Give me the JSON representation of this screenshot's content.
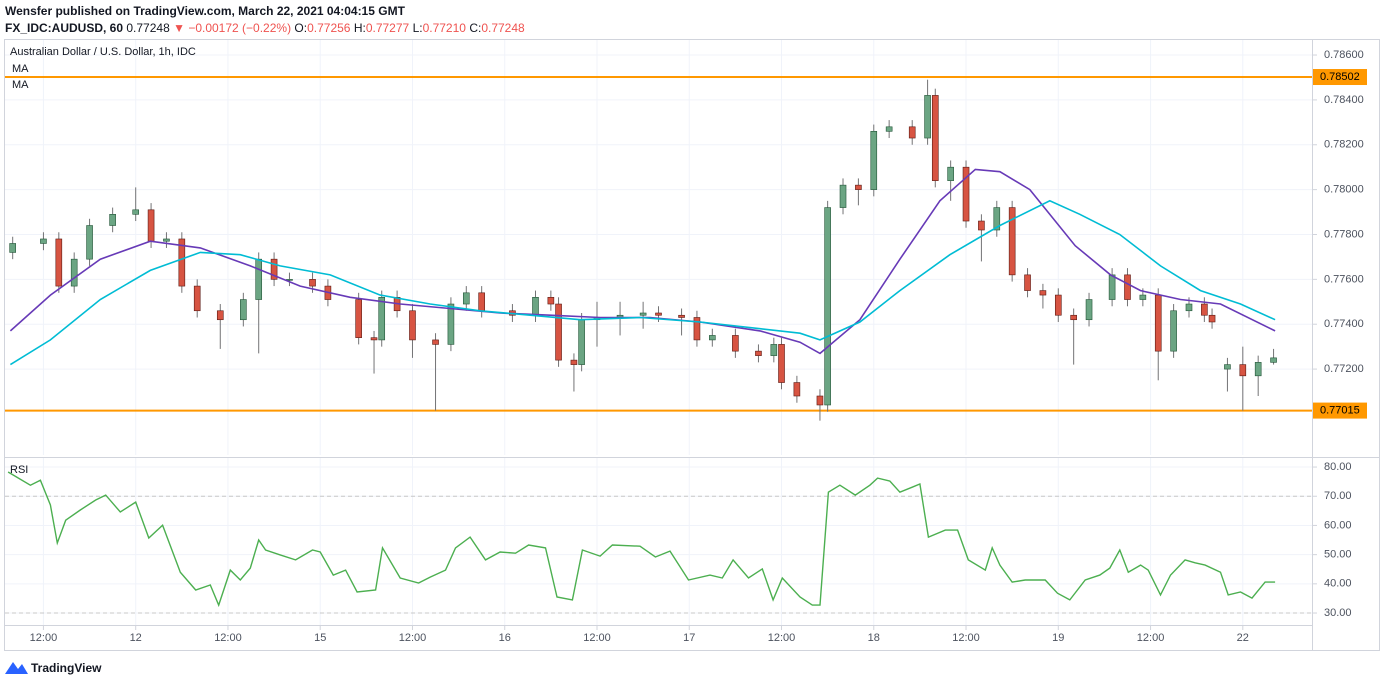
{
  "header": {
    "line1": "Wensfer published on TradingView.com, March 22, 2021 04:04:15 GMT",
    "symbol": "FX_IDC:AUDUSD, 60",
    "last": "0.77248",
    "change": "▼ −0.00172 (−0.22%)",
    "ohlc": [
      {
        "key": "O:",
        "value": "0.77256"
      },
      {
        "key": "H:",
        "value": "0.77277"
      },
      {
        "key": "L:",
        "value": "0.77210"
      },
      {
        "key": "C:",
        "value": "0.77248"
      }
    ]
  },
  "footer": {
    "logo": "TradingView"
  },
  "chart_data": [
    {
      "type": "candlestick",
      "title": "Australian Dollar / U.S. Dollar, 1h, IDC",
      "up_color": "#6ba583",
      "down_color": "#d75442",
      "wick_color": "#737375",
      "grid": true,
      "xlim": [
        -5,
        165
      ],
      "ylim": [
        0.76817,
        0.78667
      ],
      "yticks": [
        {
          "value": 0.772,
          "label": "0.77200"
        },
        {
          "value": 0.774,
          "label": "0.77400"
        },
        {
          "value": 0.776,
          "label": "0.77600"
        },
        {
          "value": 0.778,
          "label": "0.77800"
        },
        {
          "value": 0.78,
          "label": "0.78000"
        },
        {
          "value": 0.782,
          "label": "0.78200"
        },
        {
          "value": 0.784,
          "label": "0.78400"
        },
        {
          "value": 0.786,
          "label": "0.78600"
        }
      ],
      "hline_color": "#ff9800",
      "hlines": [
        {
          "value": 0.78502,
          "label": "0.78502"
        },
        {
          "value": 0.77015,
          "label": "0.77015"
        }
      ],
      "x": [
        -4,
        0,
        2,
        4,
        6,
        9,
        12,
        14,
        16,
        18,
        20,
        23,
        26,
        28,
        30,
        32,
        35,
        37,
        41,
        43,
        44,
        46,
        48,
        51,
        53,
        55,
        57,
        61,
        64,
        66,
        67,
        69,
        70,
        72,
        75,
        78,
        80,
        83,
        85,
        87,
        90,
        93,
        95,
        96,
        98,
        101,
        102,
        104,
        106,
        108,
        110,
        113,
        115,
        116,
        118,
        120,
        122,
        124,
        126,
        128,
        130,
        132,
        134,
        136,
        139,
        141,
        143,
        145,
        147,
        149,
        151,
        152,
        154,
        156,
        158,
        160
      ],
      "open": [
        0.7772,
        0.7776,
        0.7778,
        0.7757,
        0.7769,
        0.7784,
        0.7789,
        0.7791,
        0.7777,
        0.7778,
        0.7757,
        0.7746,
        0.7742,
        0.7751,
        0.7769,
        0.776,
        0.776,
        0.7757,
        0.7751,
        0.7734,
        0.7733,
        0.7752,
        0.7746,
        0.7733,
        0.7731,
        0.7749,
        0.7754,
        0.7746,
        0.7744,
        0.7752,
        0.7749,
        0.7724,
        0.7722,
        0.7742,
        0.7743,
        0.7744,
        0.7745,
        0.7744,
        0.7743,
        0.7733,
        0.7735,
        0.7728,
        0.7726,
        0.7731,
        0.7714,
        0.7708,
        0.7704,
        0.7792,
        0.7802,
        0.78,
        0.7826,
        0.7828,
        0.7823,
        0.7842,
        0.7804,
        0.781,
        0.7786,
        0.7782,
        0.7792,
        0.7762,
        0.7755,
        0.7753,
        0.7744,
        0.7742,
        0.7751,
        0.7762,
        0.7751,
        0.7753,
        0.7728,
        0.7746,
        0.7749,
        0.7744,
        0.772,
        0.7722,
        0.7717,
        0.7723
      ],
      "high": [
        0.7779,
        0.7781,
        0.7781,
        0.7772,
        0.7787,
        0.7792,
        0.7801,
        0.7794,
        0.7781,
        0.7781,
        0.776,
        0.7749,
        0.7754,
        0.7772,
        0.7772,
        0.7763,
        0.7763,
        0.776,
        0.7754,
        0.7737,
        0.7755,
        0.7755,
        0.7749,
        0.7736,
        0.7752,
        0.7757,
        0.7757,
        0.7749,
        0.7755,
        0.7755,
        0.7752,
        0.7727,
        0.7745,
        0.775,
        0.775,
        0.775,
        0.7748,
        0.7747,
        0.7746,
        0.7738,
        0.7738,
        0.7731,
        0.7734,
        0.7734,
        0.7717,
        0.7711,
        0.7795,
        0.7805,
        0.7805,
        0.7829,
        0.7831,
        0.7831,
        0.7849,
        0.7845,
        0.7813,
        0.7813,
        0.7789,
        0.7795,
        0.7795,
        0.7765,
        0.7758,
        0.7756,
        0.7747,
        0.7754,
        0.7765,
        0.7765,
        0.7756,
        0.7756,
        0.7749,
        0.7752,
        0.7752,
        0.7747,
        0.7725,
        0.773,
        0.7726,
        0.7729
      ],
      "low": [
        0.7769,
        0.7773,
        0.7754,
        0.7754,
        0.7766,
        0.7781,
        0.7786,
        0.7774,
        0.7774,
        0.7754,
        0.7743,
        0.7729,
        0.7739,
        0.7727,
        0.7757,
        0.7757,
        0.7754,
        0.7748,
        0.7731,
        0.7718,
        0.773,
        0.7743,
        0.7725,
        0.77015,
        0.7728,
        0.7746,
        0.7743,
        0.7741,
        0.7741,
        0.7746,
        0.7721,
        0.771,
        0.7719,
        0.773,
        0.7735,
        0.7738,
        0.7741,
        0.7735,
        0.773,
        0.773,
        0.7725,
        0.7723,
        0.7723,
        0.7711,
        0.7705,
        0.7697,
        0.7701,
        0.7789,
        0.7793,
        0.7797,
        0.7823,
        0.782,
        0.782,
        0.7801,
        0.7795,
        0.7783,
        0.7768,
        0.7779,
        0.7759,
        0.7752,
        0.7747,
        0.7741,
        0.7722,
        0.7739,
        0.7748,
        0.7748,
        0.7748,
        0.7715,
        0.7725,
        0.7743,
        0.7741,
        0.7738,
        0.771,
        0.77015,
        0.7708,
        0.7722
      ],
      "close": [
        0.7776,
        0.7778,
        0.7757,
        0.7769,
        0.7784,
        0.7789,
        0.7791,
        0.7777,
        0.7778,
        0.7757,
        0.7746,
        0.7742,
        0.7751,
        0.7769,
        0.776,
        0.776,
        0.7757,
        0.7751,
        0.7734,
        0.7733,
        0.7752,
        0.7746,
        0.7733,
        0.7731,
        0.7749,
        0.7754,
        0.7746,
        0.7744,
        0.7752,
        0.7749,
        0.7724,
        0.7722,
        0.7742,
        0.7743,
        0.7744,
        0.7745,
        0.7744,
        0.7743,
        0.7733,
        0.7735,
        0.7728,
        0.7726,
        0.7731,
        0.7714,
        0.7708,
        0.7704,
        0.7792,
        0.7802,
        0.78,
        0.7826,
        0.7828,
        0.7823,
        0.7842,
        0.7804,
        0.781,
        0.7786,
        0.7782,
        0.7792,
        0.7762,
        0.7755,
        0.7753,
        0.7744,
        0.7742,
        0.7751,
        0.7762,
        0.7751,
        0.7753,
        0.7728,
        0.7746,
        0.7749,
        0.7744,
        0.7741,
        0.7722,
        0.7717,
        0.7723,
        0.7725
      ],
      "series": [
        {
          "name": "MA",
          "color": "#673ab7",
          "x": [
            -4.3,
            0.9,
            7.4,
            13.9,
            20.4,
            26.9,
            33.4,
            39.9,
            46.4,
            52.9,
            59.4,
            65.9,
            72.4,
            78.9,
            85.4,
            93.2,
            98.4,
            101,
            106.2,
            111.4,
            116.6,
            121.2,
            124.4,
            128.3,
            134.2,
            138.8,
            142.7,
            147.9,
            153.1,
            160.2
          ],
          "values": [
            0.7737,
            0.7753,
            0.7769,
            0.7777,
            0.7774,
            0.7766,
            0.7757,
            0.7752,
            0.7749,
            0.7747,
            0.7745,
            0.7744,
            0.7743,
            0.7743,
            0.7741,
            0.7737,
            0.7732,
            0.7727,
            0.7742,
            0.7769,
            0.7795,
            0.7809,
            0.7808,
            0.78,
            0.7775,
            0.7762,
            0.7755,
            0.7751,
            0.7749,
            0.7737
          ]
        },
        {
          "name": "MA",
          "color": "#00bcd4",
          "x": [
            -4.3,
            0.9,
            7.4,
            13.9,
            20.4,
            25.6,
            30.8,
            37.3,
            43.8,
            50.3,
            56.8,
            63.3,
            69.8,
            77.6,
            85.4,
            93.2,
            98.4,
            101,
            106.2,
            111.4,
            117.9,
            124.4,
            130.9,
            134.8,
            140,
            145.3,
            150.5,
            155.7,
            160.2
          ],
          "values": [
            0.7722,
            0.7733,
            0.7751,
            0.7764,
            0.7772,
            0.7771,
            0.7766,
            0.7762,
            0.7753,
            0.7749,
            0.7746,
            0.7744,
            0.7742,
            0.7743,
            0.7741,
            0.7738,
            0.7736,
            0.7733,
            0.7741,
            0.7755,
            0.7771,
            0.7784,
            0.7795,
            0.7789,
            0.778,
            0.7766,
            0.7755,
            0.7749,
            0.7742
          ]
        }
      ]
    },
    {
      "type": "line",
      "title": "RSI",
      "grid": true,
      "xlim": [
        -5,
        165
      ],
      "ylim": [
        25.9,
        83.1
      ],
      "xticks": [
        {
          "value": 0,
          "label": "12:00"
        },
        12,
        {
          "value": 24,
          "label": "12:00"
        },
        {
          "value": 36,
          "label": "15"
        },
        {
          "value": 48,
          "label": "12:00"
        },
        {
          "value": 60,
          "label": "16"
        },
        {
          "value": 72,
          "label": "12:00"
        },
        {
          "value": 84,
          "label": "17"
        },
        {
          "value": 96,
          "label": "12:00"
        },
        {
          "value": 108,
          "label": "18"
        },
        {
          "value": 120,
          "label": "12:00"
        },
        {
          "value": 132,
          "label": "19"
        },
        {
          "value": 144,
          "label": "12:00"
        },
        {
          "value": 156,
          "label": "22"
        }
      ],
      "yticks": [
        {
          "value": 30,
          "label": "30.00"
        },
        {
          "value": 40,
          "label": "40.00"
        },
        {
          "value": 50,
          "label": "50.00"
        },
        {
          "value": 60,
          "label": "60.00"
        },
        {
          "value": 70,
          "label": "70.00"
        },
        {
          "value": 80,
          "label": "80.00"
        }
      ],
      "bands": [
        70,
        30
      ],
      "x": [
        -4.6,
        -1.7,
        -0.4,
        0.9,
        1.8,
        2.9,
        4.8,
        6.8,
        8.1,
        10,
        12,
        13.7,
        15.5,
        17.8,
        19.8,
        21.7,
        22.8,
        24.3,
        25.6,
        26.9,
        28,
        28.9,
        30.8,
        32.8,
        35,
        36,
        37.7,
        39.3,
        40.8,
        43.2,
        44.1,
        46.4,
        48.8,
        50.3,
        52.3,
        53.6,
        55.5,
        57.5,
        59.4,
        61.4,
        63.1,
        65.3,
        66.8,
        68.8,
        70.1,
        72.4,
        74,
        77.6,
        79.6,
        81.5,
        83.9,
        86.7,
        88.3,
        89.7,
        91.7,
        93.5,
        94.9,
        96.1,
        98.4,
        100,
        101,
        102.1,
        103.6,
        105.6,
        107.5,
        108.5,
        110.1,
        111.4,
        113,
        114,
        115.1,
        117.3,
        118.9,
        120.3,
        122.5,
        123.4,
        124.4,
        126,
        127.7,
        130.3,
        131.9,
        133.5,
        135.5,
        137.4,
        138.7,
        140,
        141.1,
        142.7,
        143.7,
        145.3,
        146.6,
        148.5,
        149.8,
        151.1,
        153.1,
        154.1,
        155.7,
        157.2,
        158.9,
        160.2
      ],
      "series": [
        {
          "color": "#4caf50",
          "values": [
            78.3,
            73.8,
            75.5,
            67,
            54,
            61.8,
            65.3,
            68.7,
            70.4,
            64.6,
            68,
            55.7,
            60.1,
            44,
            37.9,
            39.6,
            32.7,
            44.7,
            41.3,
            45.4,
            55,
            51.6,
            49.9,
            48.2,
            51.6,
            50.9,
            43,
            44.7,
            37.2,
            37.9,
            52.3,
            42,
            40.3,
            42.3,
            44.7,
            52.3,
            56,
            48.2,
            50.9,
            50.5,
            53.3,
            52.3,
            35.5,
            34.5,
            51.6,
            49.5,
            53.3,
            52.9,
            49.2,
            51.2,
            41.3,
            43,
            42,
            48.2,
            42,
            45.1,
            34.5,
            42,
            35.5,
            32.7,
            32.7,
            71.4,
            73.8,
            70.4,
            73.8,
            76.2,
            75.2,
            71.4,
            73.1,
            74.2,
            56,
            58.4,
            58.4,
            48.2,
            44.7,
            52.3,
            46.4,
            40.6,
            41.3,
            41.3,
            36.8,
            34.5,
            41.3,
            43,
            45.4,
            51.6,
            44,
            46.4,
            44.7,
            36.2,
            43,
            48.2,
            47.2,
            46.4,
            44,
            36.2,
            37.2,
            35.1,
            40.6,
            40.6
          ]
        }
      ]
    }
  ]
}
